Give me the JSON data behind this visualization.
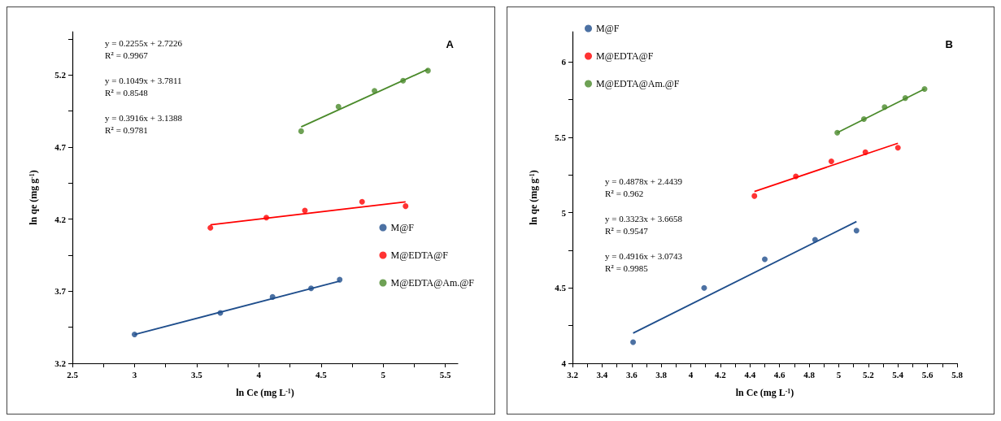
{
  "chart_data": [
    {
      "type": "scatter",
      "title": "A",
      "xlabel": "ln Ce (mg L$^{-1}$)",
      "ylabel": "ln qe (mg g$^{-1}$)",
      "xlim": [
        2.5,
        5.6
      ],
      "ylim": [
        3.2,
        5.5
      ],
      "xticks": [
        2.5,
        {
          "value": 2.75,
          "label": null
        },
        3,
        {
          "value": 3.25,
          "label": null
        },
        3.5,
        {
          "value": 3.75,
          "label": null
        },
        4,
        {
          "value": 4.25,
          "label": null
        },
        4.5,
        {
          "value": 4.75,
          "label": null
        },
        5,
        {
          "value": 5.25,
          "label": null
        },
        5.5
      ],
      "yticks": [
        3.2,
        {
          "value": 3.45,
          "label": null
        },
        3.7,
        {
          "value": 3.95,
          "label": null
        },
        4.2,
        {
          "value": 4.45,
          "label": null
        },
        4.7,
        {
          "value": 4.95,
          "label": null
        },
        5.2,
        {
          "value": 5.45,
          "label": null
        }
      ],
      "grid": false,
      "legend": "right",
      "marker": "circle",
      "series": [
        {
          "name": "M@F",
          "color": "#1f4e8c",
          "x": [
            3.0,
            3.69,
            4.11,
            4.42,
            4.65
          ],
          "values": [
            3.4,
            3.55,
            3.66,
            3.72,
            3.78
          ]
        },
        {
          "name": "M@EDTA@F",
          "color": "#ff0000",
          "x": [
            3.61,
            4.06,
            4.37,
            4.83,
            5.18
          ],
          "values": [
            4.14,
            4.21,
            4.26,
            4.32,
            4.29
          ]
        },
        {
          "name": "M@EDTA@Am.@F",
          "color": "#4a8a2a",
          "x": [
            4.34,
            4.64,
            4.93,
            5.16,
            5.36
          ],
          "values": [
            4.81,
            4.98,
            5.09,
            5.16,
            5.23
          ]
        },
        {
          "type": "line",
          "color": "#1f4e8c",
          "marker": "none",
          "x": [
            3.0,
            4.65
          ],
          "values": [
            3.4,
            3.77
          ]
        },
        {
          "type": "line",
          "color": "#ff0000",
          "marker": "none",
          "x": [
            3.61,
            5.18
          ],
          "values": [
            4.16,
            4.32
          ]
        },
        {
          "type": "line",
          "color": "#4a8a2a",
          "marker": "none",
          "x": [
            4.34,
            5.36
          ],
          "values": [
            4.84,
            5.24
          ]
        }
      ],
      "annotations": [
        "y = 0.2255x + 2.7226",
        "R$^{2}$ = 0.9967",
        "y = 0.1049x + 3.7811",
        "R$^{2}$ = 0.8548",
        "y = 0.3916x + 3.1388",
        "R$^{2}$ = 0.9781"
      ]
    },
    {
      "type": "scatter",
      "title": "B",
      "xlabel": "ln Ce (mg L$^{-1}$)",
      "ylabel": "ln qe (mg g$^{-1}$)",
      "xlim": [
        3.2,
        5.8
      ],
      "ylim": [
        4,
        6.2
      ],
      "xticks": [
        3.2,
        {
          "value": 3.3,
          "label": null
        },
        3.4,
        {
          "value": 3.5,
          "label": null
        },
        3.6,
        {
          "value": 3.7,
          "label": null
        },
        3.8,
        {
          "value": 3.9,
          "label": null
        },
        4,
        {
          "value": 4.1,
          "label": null
        },
        4.2,
        {
          "value": 4.3,
          "label": null
        },
        4.4,
        {
          "value": 4.5,
          "label": null
        },
        4.6,
        {
          "value": 4.7,
          "label": null
        },
        4.8,
        {
          "value": 4.9,
          "label": null
        },
        5,
        {
          "value": 5.1,
          "label": null
        },
        5.2,
        {
          "value": 5.3,
          "label": null
        },
        5.4,
        {
          "value": 5.5,
          "label": null
        },
        5.6,
        {
          "value": 5.7,
          "label": null
        },
        5.8
      ],
      "yticks": [
        4,
        {
          "value": 4.25,
          "label": null
        },
        4.5,
        {
          "value": 4.75,
          "label": null
        },
        5,
        {
          "value": 5.25,
          "label": null
        },
        5.5,
        {
          "value": 5.75,
          "label": null
        },
        6
      ],
      "grid": false,
      "legend": "top left",
      "marker": "circle",
      "series": [
        {
          "name": "M@F",
          "color": "#1f4e8c",
          "x": [
            3.61,
            4.09,
            4.5,
            4.84,
            5.12
          ],
          "values": [
            4.14,
            4.5,
            4.69,
            4.82,
            4.88
          ]
        },
        {
          "name": "M@EDTA@F",
          "color": "#ff0000",
          "x": [
            4.43,
            4.71,
            4.95,
            5.18,
            5.4
          ],
          "values": [
            5.11,
            5.24,
            5.34,
            5.4,
            5.43
          ]
        },
        {
          "name": "M@EDTA@Am.@F",
          "color": "#4a8a2a",
          "x": [
            4.99,
            5.17,
            5.31,
            5.45,
            5.58
          ],
          "values": [
            5.53,
            5.62,
            5.7,
            5.76,
            5.82
          ]
        },
        {
          "type": "line",
          "color": "#1f4e8c",
          "marker": "none",
          "x": [
            3.61,
            5.12
          ],
          "values": [
            4.2,
            4.94
          ]
        },
        {
          "type": "line",
          "color": "#ff0000",
          "marker": "none",
          "x": [
            4.43,
            5.4
          ],
          "values": [
            5.14,
            5.46
          ]
        },
        {
          "type": "line",
          "color": "#4a8a2a",
          "marker": "none",
          "x": [
            4.99,
            5.58
          ],
          "values": [
            5.53,
            5.82
          ]
        }
      ],
      "annotations": [
        "y = 0.4878x + 2.4439",
        "R$^{2}$ = 0.962",
        "y = 0.3323x + 3.6658",
        "R$^{2}$ = 0.9547",
        "y = 0.4916x + 3.0743",
        "R$^{2}$ = 0.9985"
      ]
    }
  ]
}
